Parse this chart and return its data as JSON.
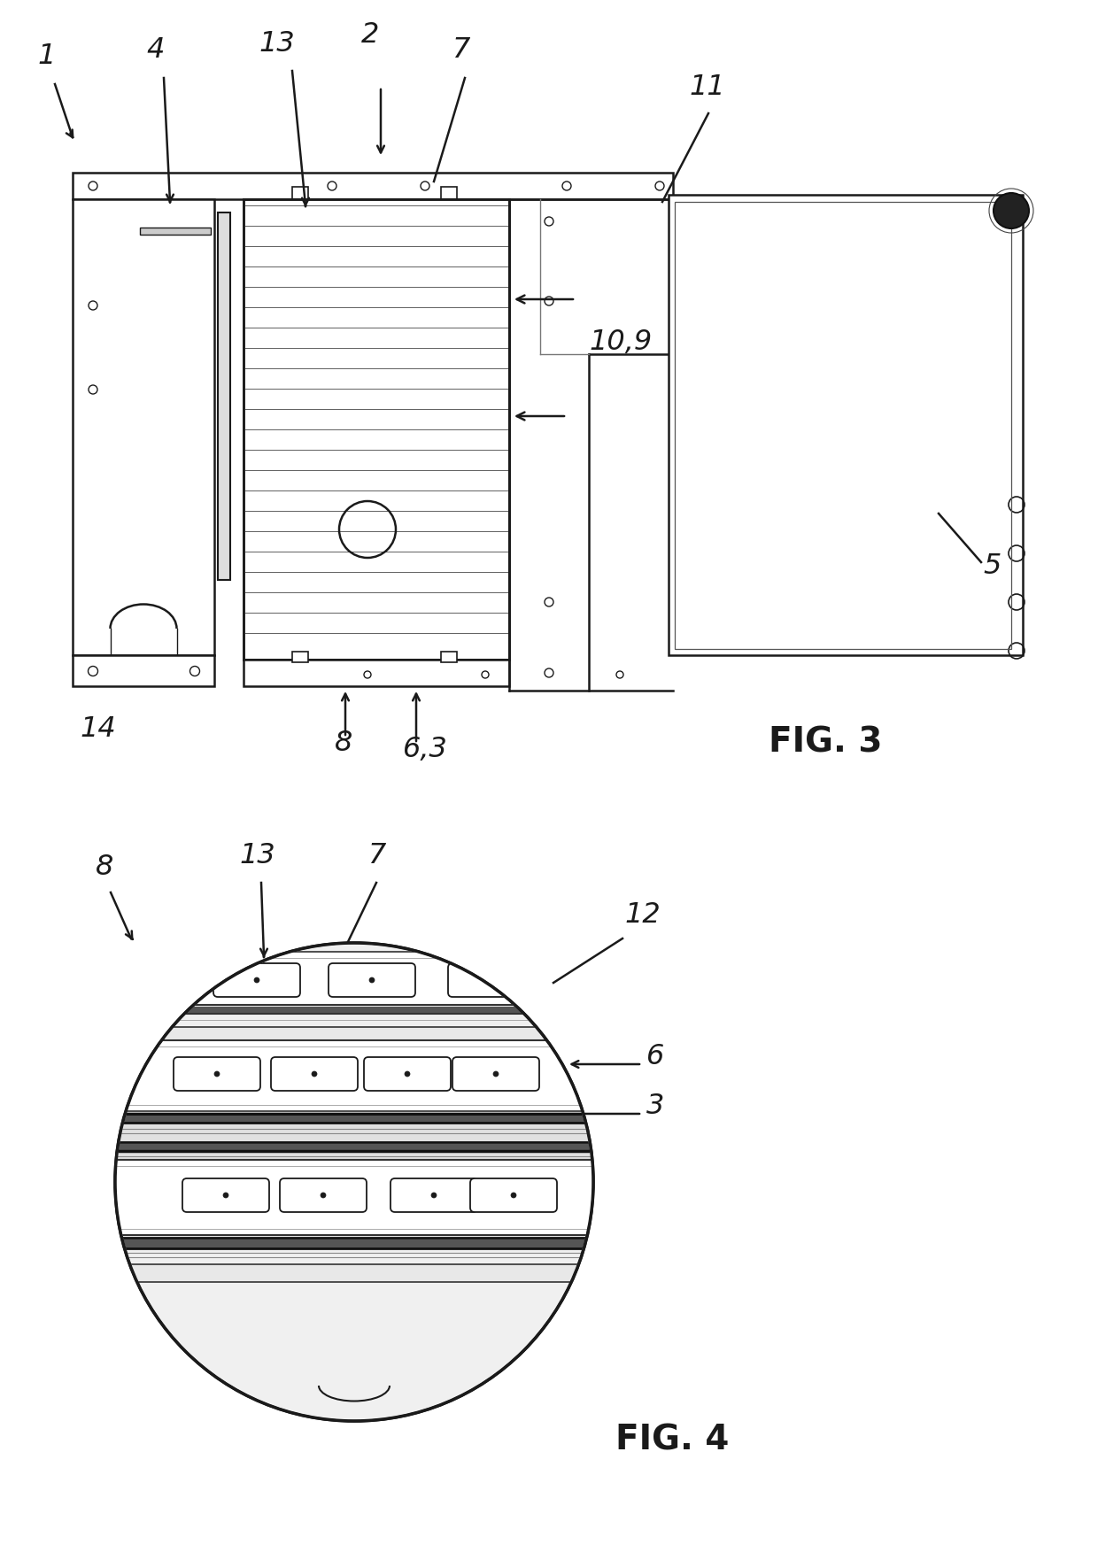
{
  "bg_color": "#ffffff",
  "line_color": "#1a1a1a",
  "fig3_title": "FIG. 3",
  "fig4_title": "FIG. 4",
  "figsize": [
    12.4,
    17.62
  ],
  "dpi": 100
}
